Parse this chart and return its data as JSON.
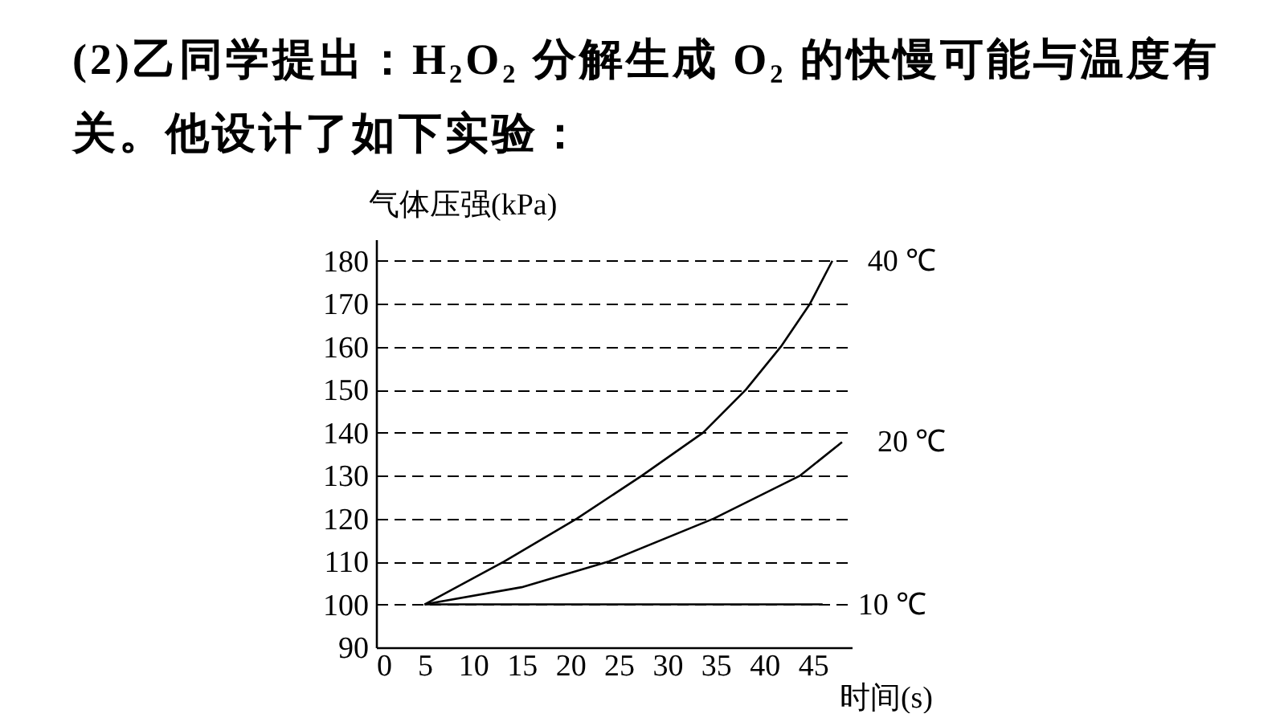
{
  "chart_data": {
    "type": "line",
    "title": "(2)乙同学提出：H₂O₂ 分解生成 O₂ 的快慢可能与温度有关。他设计了如下实验：",
    "xlabel": "时间(s)",
    "ylabel": "气体压强(kPa)",
    "xlim": [
      0,
      49
    ],
    "xticks": [
      0,
      5,
      10,
      15,
      20,
      25,
      30,
      35,
      40,
      45
    ],
    "ylim": [
      90,
      185
    ],
    "yticks": [
      90,
      100,
      110,
      120,
      130,
      140,
      150,
      160,
      170,
      180
    ],
    "grid": "y",
    "legend": false,
    "marker": "none",
    "line_style": "solid",
    "series": [
      {
        "name": "40 ℃",
        "color": "#000000",
        "x": [
          5,
          13.2,
          20.7,
          27.4,
          33.7,
          38.1,
          41.7,
          44.7,
          47
        ],
        "values": [
          100,
          110,
          120,
          130,
          140,
          150,
          160,
          170,
          180
        ]
      },
      {
        "name": "20 ℃",
        "color": "#000000",
        "x": [
          5,
          15,
          24,
          34.8,
          43.7,
          48
        ],
        "values": [
          100,
          104,
          110,
          120,
          130,
          137.8
        ]
      },
      {
        "name": "10 ℃",
        "color": "#000000",
        "x": [
          5,
          46
        ],
        "values": [
          100,
          100
        ]
      }
    ]
  }
}
